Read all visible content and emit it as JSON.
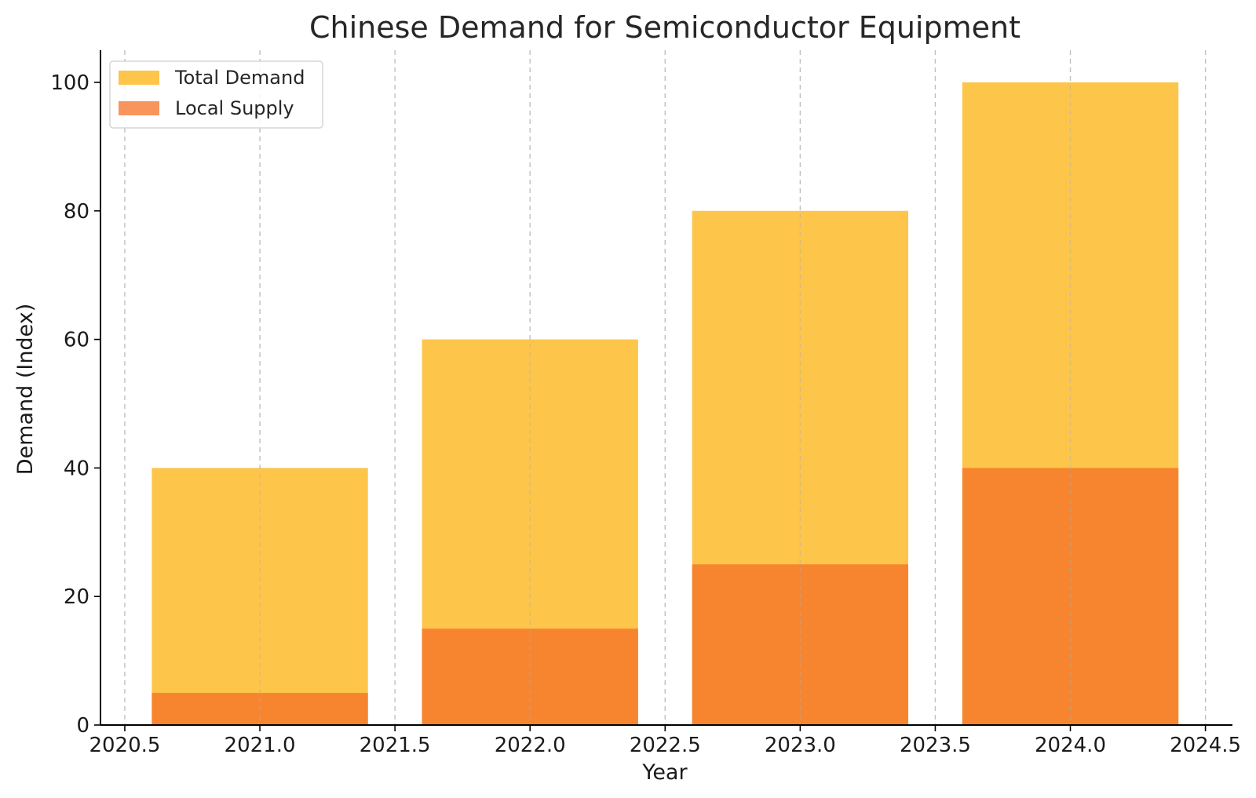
{
  "chart_data": {
    "type": "bar",
    "title": "Chinese Demand for Semiconductor Equipment",
    "xlabel": "Year",
    "ylabel": "Demand (Index)",
    "x": [
      2021,
      2022,
      2023,
      2024
    ],
    "bar_width": 0.8,
    "series": [
      {
        "name": "Total Demand",
        "values": [
          40,
          60,
          80,
          100
        ],
        "color": "#fdc54a"
      },
      {
        "name": "Local Supply",
        "values": [
          5,
          15,
          25,
          40
        ],
        "color": "#f7852f",
        "legend_color": "#f8955d"
      }
    ],
    "xlim": [
      2020.41,
      2024.6
    ],
    "ylim": [
      0,
      105
    ],
    "xticks": [
      2020.5,
      2021.0,
      2021.5,
      2022.0,
      2022.5,
      2023.0,
      2023.5,
      2024.0,
      2024.5
    ],
    "xtick_labels": [
      "2020.5",
      "2021.0",
      "2021.5",
      "2022.0",
      "2022.5",
      "2023.0",
      "2023.5",
      "2024.0",
      "2024.5"
    ],
    "yticks": [
      0,
      20,
      40,
      60,
      80,
      100
    ],
    "ytick_labels": [
      "0",
      "20",
      "40",
      "60",
      "80",
      "100"
    ],
    "grid": "vertical-dashed",
    "legend_position": "upper-left"
  }
}
